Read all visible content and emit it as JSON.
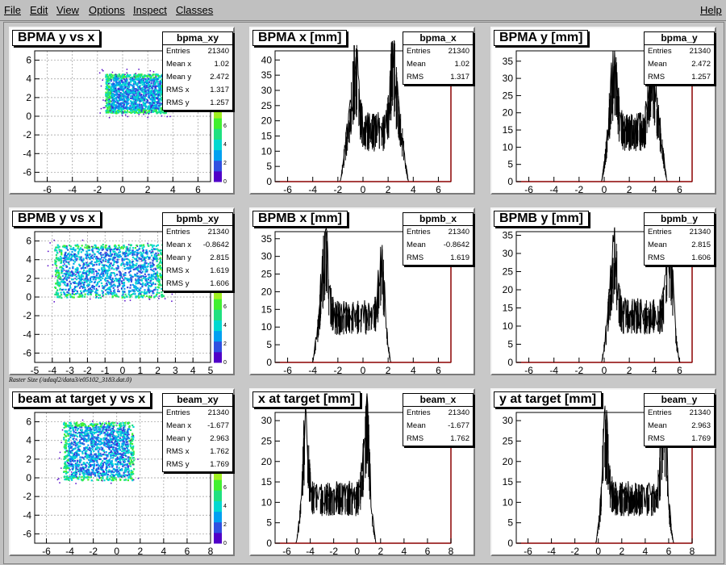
{
  "menu": {
    "items": [
      "File",
      "Edit",
      "View",
      "Options",
      "Inspect",
      "Classes"
    ],
    "help": "Help"
  },
  "raster_label": "Raster Size (/adaql2/data3/e05102_3183.dat.0)",
  "palette_colors": [
    "#5000c8",
    "#3050e0",
    "#00a0f0",
    "#00d8d0",
    "#20e080",
    "#40f030",
    "#a0f020"
  ],
  "pads": [
    {
      "id": "bpma_xy",
      "kind": "scatter",
      "title": "BPMA y vs x",
      "stats_name": "bpma_xy",
      "stats": [
        [
          "Entries",
          "21340"
        ],
        [
          "Mean x",
          "1.02"
        ],
        [
          "Mean y",
          "2.472"
        ],
        [
          "RMS x",
          "1.317"
        ],
        [
          "RMS y",
          "1.257"
        ]
      ],
      "x_ticks": [
        "-6",
        "-4",
        "-2",
        "0",
        "2",
        "4",
        "6"
      ],
      "xlim": [
        -7,
        7
      ],
      "y_ticks": [
        "-6",
        "-4",
        "-2",
        "0",
        "2",
        "4",
        "6"
      ],
      "ylim": [
        -7,
        7
      ],
      "palette_ticks": [
        "0",
        "2",
        "4",
        "6",
        "8"
      ],
      "rect": {
        "x0": -1.4,
        "x1": 3.4,
        "y0": 0.4,
        "y1": 4.6
      }
    },
    {
      "id": "bpma_x",
      "kind": "hist",
      "title": "BPMA x [mm]",
      "stats_name": "bpma_x",
      "stats": [
        [
          "Entries",
          "21340"
        ],
        [
          "Mean",
          "1.02"
        ],
        [
          "RMS",
          "1.317"
        ]
      ],
      "x_ticks": [
        "-6",
        "-4",
        "-2",
        "0",
        "2",
        "4",
        "6"
      ],
      "xlim": [
        -7,
        7
      ],
      "y_ticks": [
        "0",
        "5",
        "10",
        "15",
        "20",
        "25",
        "30",
        "35",
        "40"
      ],
      "ylim": [
        0,
        43
      ],
      "profile": {
        "start": -1.8,
        "end": 3.6,
        "peak_left": -0.6,
        "peak_right": 2.4,
        "left_height": 38,
        "right_height": 40,
        "mid_height": 18,
        "edge_height": 25
      }
    },
    {
      "id": "bpma_y",
      "kind": "hist",
      "title": "BPMA y [mm]",
      "stats_name": "bpma_y",
      "stats": [
        [
          "Entries",
          "21340"
        ],
        [
          "Mean",
          "2.472"
        ],
        [
          "RMS",
          "1.257"
        ]
      ],
      "x_ticks": [
        "-6",
        "-4",
        "-2",
        "0",
        "2",
        "4",
        "6"
      ],
      "xlim": [
        -7,
        7
      ],
      "y_ticks": [
        "0",
        "5",
        "10",
        "15",
        "20",
        "25",
        "30",
        "35"
      ],
      "ylim": [
        0,
        38
      ],
      "profile": {
        "start": -0.2,
        "end": 5.0,
        "peak_left": 0.8,
        "peak_right": 3.8,
        "left_height": 33,
        "right_height": 35,
        "mid_height": 16,
        "edge_height": 22
      }
    },
    {
      "id": "bpmb_xy",
      "kind": "scatter",
      "title": "BPMB y vs x",
      "stats_name": "bpmb_xy",
      "stats": [
        [
          "Entries",
          "21340"
        ],
        [
          "Mean x",
          "-0.8642"
        ],
        [
          "Mean y",
          "2.815"
        ],
        [
          "RMS x",
          "1.619"
        ],
        [
          "RMS y",
          "1.606"
        ]
      ],
      "x_ticks": [
        "-5",
        "-4",
        "-3",
        "-2",
        "-1",
        "0",
        "1",
        "2",
        "3",
        "4",
        "5"
      ],
      "xlim": [
        -5,
        5
      ],
      "y_ticks": [
        "-6",
        "-4",
        "-2",
        "0",
        "2",
        "4",
        "6"
      ],
      "ylim": [
        -7,
        7
      ],
      "palette_ticks": [
        "0",
        "2",
        "4",
        "6",
        "8"
      ],
      "rect": {
        "x0": -3.9,
        "x1": 2.3,
        "y0": 0.0,
        "y1": 5.7
      }
    },
    {
      "id": "bpmb_x",
      "kind": "hist",
      "title": "BPMB x [mm]",
      "stats_name": "bpmb_x",
      "stats": [
        [
          "Entries",
          "21340"
        ],
        [
          "Mean",
          "-0.8642"
        ],
        [
          "RMS",
          "1.619"
        ]
      ],
      "x_ticks": [
        "-6",
        "-4",
        "-2",
        "0",
        "2",
        "4",
        "6"
      ],
      "xlim": [
        -7,
        7
      ],
      "y_ticks": [
        "0",
        "5",
        "10",
        "15",
        "20",
        "25",
        "30",
        "35"
      ],
      "ylim": [
        0,
        37
      ],
      "profile": {
        "start": -4.0,
        "end": 2.2,
        "peak_left": -3.0,
        "peak_right": 1.5,
        "left_height": 32,
        "right_height": 27,
        "mid_height": 14,
        "edge_height": 20
      }
    },
    {
      "id": "bpmb_y",
      "kind": "hist",
      "title": "BPMB y [mm]",
      "stats_name": "bpmb_y",
      "stats": [
        [
          "Entries",
          "21340"
        ],
        [
          "Mean",
          "2.815"
        ],
        [
          "RMS",
          "1.606"
        ]
      ],
      "x_ticks": [
        "-6",
        "-4",
        "-2",
        "0",
        "2",
        "4",
        "6"
      ],
      "xlim": [
        -7,
        7
      ],
      "y_ticks": [
        "0",
        "5",
        "10",
        "15",
        "20",
        "25",
        "30",
        "35"
      ],
      "ylim": [
        0,
        36
      ],
      "profile": {
        "start": -0.2,
        "end": 6.0,
        "peak_left": 0.8,
        "peak_right": 5.2,
        "left_height": 30,
        "right_height": 31,
        "mid_height": 14,
        "edge_height": 20
      }
    },
    {
      "id": "beam_xy",
      "kind": "scatter",
      "title": "beam at target y vs x",
      "stats_name": "beam_xy",
      "stats": [
        [
          "Entries",
          "21340"
        ],
        [
          "Mean x",
          "-1.677"
        ],
        [
          "Mean y",
          "2.963"
        ],
        [
          "RMS x",
          "1.762"
        ],
        [
          "RMS y",
          "1.769"
        ]
      ],
      "x_ticks": [
        "-6",
        "-4",
        "-2",
        "0",
        "2",
        "4",
        "6",
        "8"
      ],
      "xlim": [
        -7,
        8
      ],
      "y_ticks": [
        "-6",
        "-4",
        "-2",
        "0",
        "2",
        "4",
        "6"
      ],
      "ylim": [
        -7,
        7
      ],
      "palette_ticks": [
        "0",
        "2",
        "4",
        "6",
        "8"
      ],
      "rect": {
        "x0": -4.6,
        "x1": 1.4,
        "y0": -0.2,
        "y1": 6.0
      }
    },
    {
      "id": "beam_x",
      "kind": "hist",
      "title": "x at target [mm]",
      "stats_name": "beam_x",
      "stats": [
        [
          "Entries",
          "21340"
        ],
        [
          "Mean",
          "-1.677"
        ],
        [
          "RMS",
          "1.762"
        ]
      ],
      "x_ticks": [
        "-6",
        "-4",
        "-2",
        "0",
        "2",
        "4",
        "6",
        "8"
      ],
      "xlim": [
        -7,
        8
      ],
      "y_ticks": [
        "0",
        "5",
        "10",
        "15",
        "20",
        "25",
        "30"
      ],
      "ylim": [
        0,
        32
      ],
      "profile": {
        "start": -5.2,
        "end": 1.6,
        "peak_left": -4.4,
        "peak_right": 0.8,
        "left_height": 27,
        "right_height": 29,
        "mid_height": 12,
        "edge_height": 18
      }
    },
    {
      "id": "beam_y",
      "kind": "hist",
      "title": "y at target [mm]",
      "stats_name": "beam_y",
      "stats": [
        [
          "Entries",
          "21340"
        ],
        [
          "Mean",
          "2.963"
        ],
        [
          "RMS",
          "1.769"
        ]
      ],
      "x_ticks": [
        "-6",
        "-4",
        "-2",
        "0",
        "2",
        "4",
        "6",
        "8"
      ],
      "xlim": [
        -7,
        8
      ],
      "y_ticks": [
        "0",
        "5",
        "10",
        "15",
        "20",
        "25",
        "30"
      ],
      "ylim": [
        0,
        32
      ],
      "profile": {
        "start": -0.2,
        "end": 6.4,
        "peak_left": 0.6,
        "peak_right": 5.6,
        "left_height": 27,
        "right_height": 30,
        "mid_height": 12,
        "edge_height": 18
      }
    }
  ]
}
